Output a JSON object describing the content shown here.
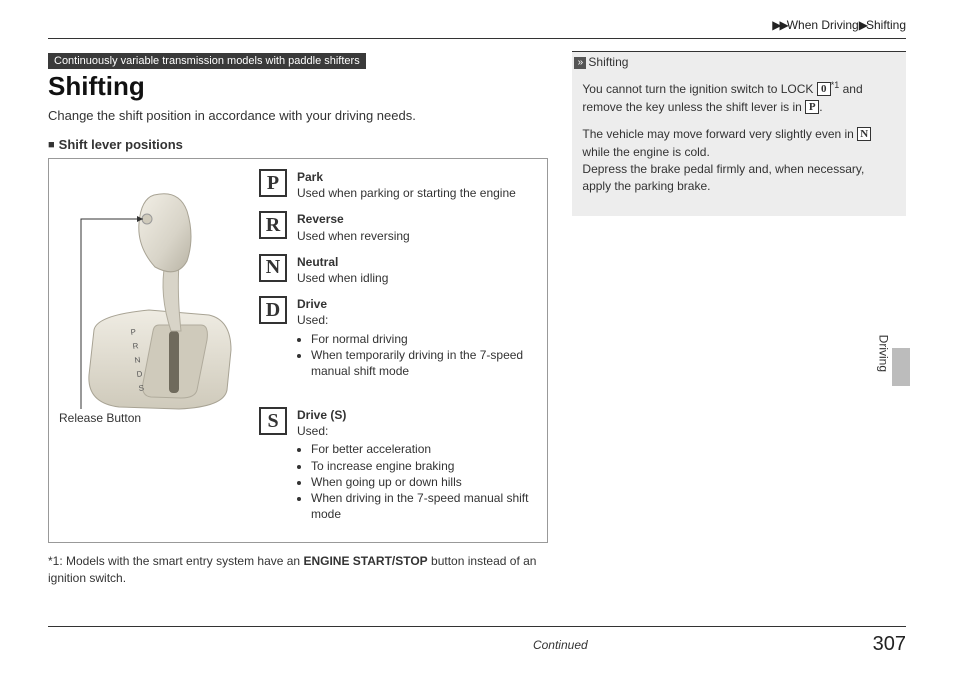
{
  "breadcrumb": {
    "seg1": "When Driving",
    "seg2": "Shifting"
  },
  "badge": "Continuously variable transmission models with paddle shifters",
  "title": "Shifting",
  "intro": "Change the shift position in accordance with your driving needs.",
  "subhead": "Shift lever positions",
  "release_button_label": "Release Button",
  "lever_letters": [
    "P",
    "R",
    "N",
    "D",
    "S"
  ],
  "positions": [
    {
      "letter": "P",
      "name": "Park",
      "desc": "Used when parking or starting the engine",
      "bullets": []
    },
    {
      "letter": "R",
      "name": "Reverse",
      "desc": "Used when reversing",
      "bullets": []
    },
    {
      "letter": "N",
      "name": "Neutral",
      "desc": "Used when idling",
      "bullets": []
    },
    {
      "letter": "D",
      "name": "Drive",
      "desc": "Used:",
      "bullets": [
        "For normal driving",
        "When temporarily driving in the 7-speed manual shift mode"
      ]
    },
    {
      "letter": "S",
      "name": "Drive (S)",
      "desc": "Used:",
      "bullets": [
        "For better acceleration",
        "To increase engine braking",
        "When going up or down hills",
        "When driving in the 7-speed manual shift mode"
      ],
      "gap": true
    }
  ],
  "footnote_pre": "*1: Models with the smart entry system have an ",
  "footnote_bold": "ENGINE START/STOP",
  "footnote_post": " button instead of an ignition switch.",
  "sidebar": {
    "head": "Shifting",
    "p1_a": "You cannot turn the ignition switch to LOCK ",
    "p1_lock": "0",
    "p1_sup": "*1",
    "p1_b": " and remove the key unless the shift lever is in ",
    "p1_p": "P",
    "p1_c": ".",
    "p2_a": "The vehicle may move forward very slightly even in ",
    "p2_n": "N",
    "p2_b": " while the engine is cold.",
    "p2_c": "Depress the brake pedal firmly and, when necessary, apply the parking brake."
  },
  "side_tab_label": "Driving",
  "continued": "Continued",
  "pagenum": "307",
  "colors": {
    "page_bg": "#ffffff",
    "text": "#333333",
    "rule": "#333333",
    "badge_bg": "#3a3a3a",
    "sidebar_bg": "#ededed",
    "tab_bg": "#bcbcbc",
    "lever_light": "#e8e5dc",
    "lever_mid": "#d8d4c8",
    "lever_dark": "#bcb8aa"
  }
}
